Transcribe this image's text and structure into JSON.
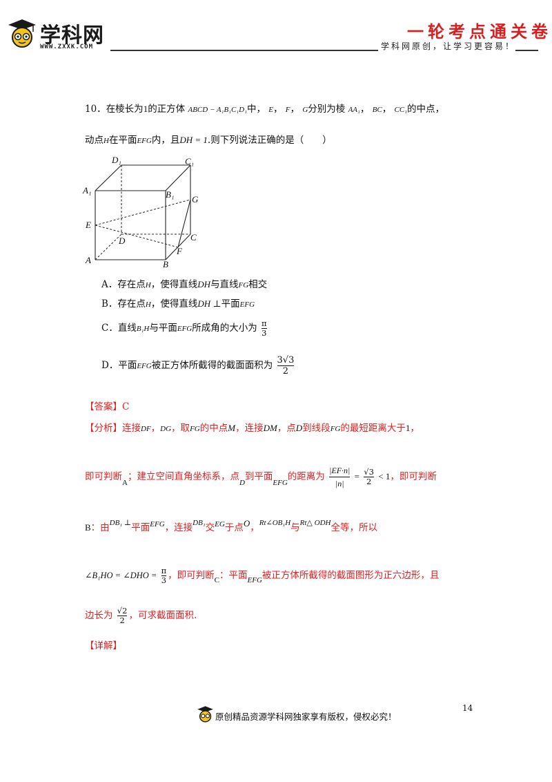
{
  "header": {
    "logo_text": "学科网",
    "logo_url": "WWW.ZXXK.COM",
    "banner_title": "一轮考点通关卷",
    "banner_subtitle": "学科网原创，让学习更容易！"
  },
  "question": {
    "number": "10．",
    "line1_a": "在棱长为",
    "line1_one": "1",
    "line1_b": "的正方体",
    "cube_name": "ABCD − A₁B₁C₁D₁",
    "line1_c": "中，",
    "E": "E",
    "sep1": "，",
    "F": "F",
    "sep2": "，",
    "G": "G",
    "line1_d": "分别为棱",
    "AA1": "AA₁",
    "sep3": "，",
    "BC": "BC",
    "sep4": "，",
    "CC1": "CC₁",
    "line1_e": "的中点，",
    "line2_a": "动点",
    "H": "H",
    "line2_b": "在平面",
    "EFG": "EFG",
    "line2_c": "内，且",
    "DH1": "DH = 1",
    "line2_d": ".则下列说法正确的是（　　）"
  },
  "figure": {
    "labels": [
      "D₁",
      "C₁",
      "A₁",
      "B₁",
      "G",
      "E",
      "D",
      "C",
      "F",
      "A",
      "B"
    ]
  },
  "options": {
    "A": {
      "letter": "A．",
      "t1": "存在点",
      "H": "H",
      "t2": "，使得直线",
      "DH": "DH",
      "t3": "与直线",
      "FG": "FG",
      "t4": "相交"
    },
    "B": {
      "letter": "B．",
      "t1": "存在点",
      "H": "H",
      "t2": "，使得直线",
      "DH": "DH ⊥",
      "t3": "平面",
      "EFG": "EFG"
    },
    "C": {
      "letter": "C．",
      "t1": "直线",
      "B1H": "B₁H",
      "t2": "与平面",
      "EFG": "EFG",
      "t3": "所成角的大小为",
      "num": "π",
      "den": "3"
    },
    "D": {
      "letter": "D．",
      "t1": "平面",
      "EFG": "EFG",
      "t2": "被正方体所截得的截面面积为",
      "num": "3√3",
      "den": "2"
    }
  },
  "answer": {
    "tag": "【答案】",
    "value": "C"
  },
  "analysis": {
    "tag": "【分析】",
    "l1_a": "连接",
    "DF": "DF",
    "l1_s1": "，",
    "DG": "DG",
    "l1_b": "，取",
    "FG": "FG",
    "l1_c": "的中点",
    "M": "M",
    "l1_d": "，连接",
    "DM": "DM",
    "l1_e": "，点",
    "D": "D",
    "l1_f": "到线段",
    "FG2": "FG",
    "l1_g": "的最短距离大于",
    "one": "1",
    "l1_h": "，",
    "l2_a": "即可判断",
    "l2_A": "A",
    "l2_b": "；建立空间直角坐标系，点",
    "l2_D": "D",
    "l2_c": "到平面",
    "l2_EFG": "EFG",
    "l2_d": "的距离为",
    "l2_num": "|EF·n|",
    "l2_den": "|n|",
    "l2_eq": "=",
    "l2_r_num": "√3",
    "l2_r_den": "2",
    "l2_lt": "< 1",
    "l2_e": "，即可判断",
    "l3_B": "B",
    "l3_a": "：由",
    "l3_DB1": "DB₁ ⊥",
    "l3_b": "平面",
    "l3_EFG": "EFG",
    "l3_c": "，连接",
    "l3_DB1b": "DB₁",
    "l3_d": "交",
    "l3_EG": "EG",
    "l3_e": "于点",
    "l3_O": "O",
    "l3_f": "，",
    "l3_rt1": "Rt∠OB₁H",
    "l3_g": "与",
    "l3_rt2": "Rt△ ODH",
    "l3_h": "全等，所以",
    "l4_eq": "∠B₁HO = ∠DHO =",
    "l4_num": "π",
    "l4_den": "3",
    "l4_a": "，即可判断",
    "l4_C": "C",
    "l4_b": "：平面",
    "l4_EFG": "EFG",
    "l4_c": "被正方体所截得的截面图形为正六边形，且",
    "l5_a": "边长为",
    "l5_num": "√2",
    "l5_den": "2",
    "l5_b": "，可求截面面积."
  },
  "detail": {
    "tag": "【详解】"
  },
  "footer": {
    "page_number": "14",
    "notice": "原创精品资源学科网独家享有版权，侵权必究！"
  },
  "colors": {
    "accent_red": "#e02020",
    "banner_red": "#d42020",
    "logo_yellow": "#f5c518"
  }
}
